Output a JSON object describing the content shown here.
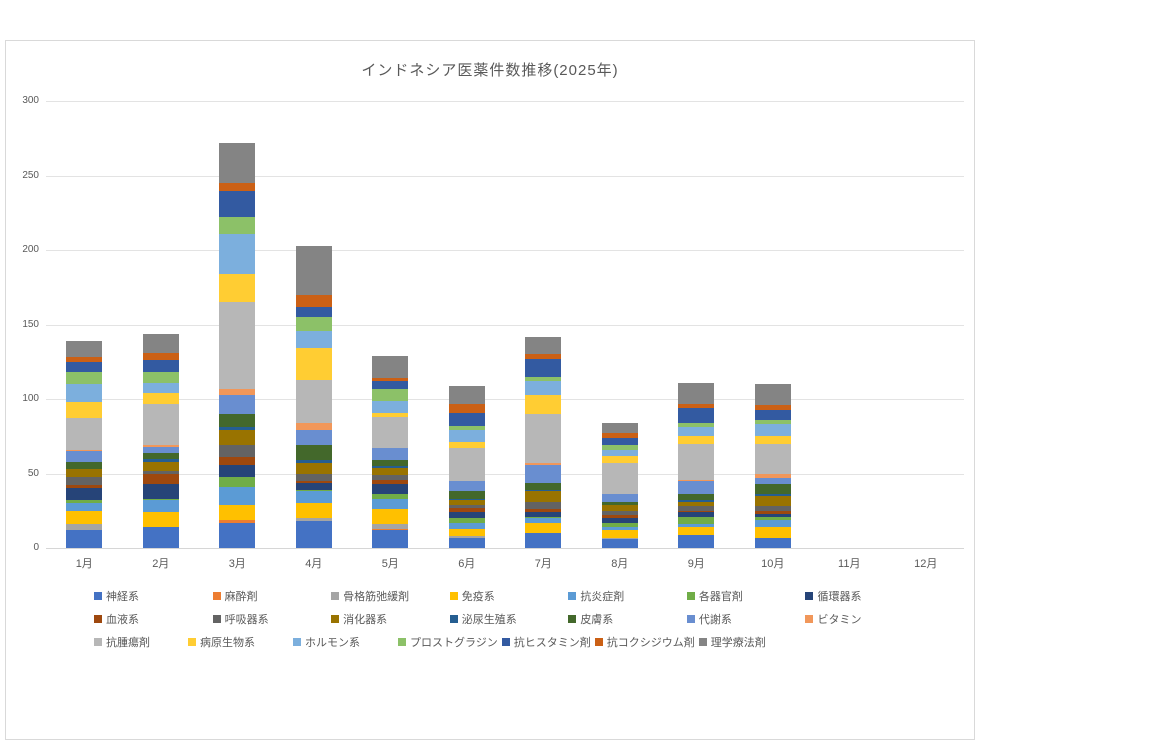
{
  "title": "インドネシア医薬件数推移(2025年)",
  "chart_data": {
    "type": "bar",
    "stacked": true,
    "title": "インドネシア医薬件数推移(2025年)",
    "categories": [
      "1月",
      "2月",
      "3月",
      "4月",
      "5月",
      "6月",
      "7月",
      "8月",
      "9月",
      "10月",
      "11月",
      "12月"
    ],
    "ylim": [
      0,
      300
    ],
    "yticks": [
      0,
      50,
      100,
      150,
      200,
      250,
      300
    ],
    "grid": true,
    "legend_position": "bottom",
    "series": [
      {
        "name": "神経系",
        "color": "#4472C4",
        "values": [
          12,
          14,
          17,
          18,
          12,
          7,
          10,
          6,
          9,
          7,
          0,
          0
        ]
      },
      {
        "name": "麻酔剤",
        "color": "#ED7D31",
        "values": [
          0,
          0,
          2,
          0,
          1,
          0,
          0,
          0,
          0,
          0,
          0,
          0
        ]
      },
      {
        "name": "骨格筋弛緩剤",
        "color": "#A5A5A5",
        "values": [
          4,
          0,
          0,
          2,
          3,
          1,
          0,
          1,
          0,
          0,
          0,
          0
        ]
      },
      {
        "name": "免疫系",
        "color": "#FFC000",
        "values": [
          9,
          10,
          10,
          10,
          10,
          5,
          7,
          5,
          5,
          7,
          0,
          0
        ]
      },
      {
        "name": "抗炎症剤",
        "color": "#5B9BD5",
        "values": [
          5,
          8,
          12,
          8,
          7,
          4,
          3,
          2,
          2,
          5,
          0,
          0
        ]
      },
      {
        "name": "各器官剤",
        "color": "#70AD47",
        "values": [
          2,
          1,
          7,
          1,
          3,
          3,
          1,
          3,
          5,
          2,
          0,
          0
        ]
      },
      {
        "name": "循環器系",
        "color": "#264478",
        "values": [
          8,
          10,
          8,
          5,
          7,
          4,
          3,
          3,
          3,
          2,
          0,
          0
        ]
      },
      {
        "name": "血液系",
        "color": "#9E480E",
        "values": [
          2,
          7,
          5,
          1,
          3,
          3,
          2,
          2,
          1,
          2,
          0,
          0
        ]
      },
      {
        "name": "呼吸器系",
        "color": "#636363",
        "values": [
          6,
          2,
          8,
          5,
          3,
          2,
          5,
          3,
          3,
          3,
          0,
          0
        ]
      },
      {
        "name": "消化器系",
        "color": "#997300",
        "values": [
          5,
          6,
          10,
          7,
          5,
          3,
          7,
          4,
          3,
          7,
          0,
          0
        ]
      },
      {
        "name": "泌尿生殖系",
        "color": "#255E91",
        "values": [
          0,
          2,
          2,
          2,
          1,
          1,
          1,
          0,
          1,
          1,
          0,
          0
        ]
      },
      {
        "name": "皮膚系",
        "color": "#43682B",
        "values": [
          5,
          4,
          9,
          10,
          4,
          5,
          5,
          2,
          4,
          7,
          0,
          0
        ]
      },
      {
        "name": "代謝系",
        "color": "#698ED0",
        "values": [
          7,
          4,
          13,
          10,
          8,
          7,
          12,
          5,
          9,
          4,
          0,
          0
        ]
      },
      {
        "name": "ビタミン",
        "color": "#F1975A",
        "values": [
          1,
          1,
          4,
          5,
          0,
          0,
          1,
          0,
          1,
          3,
          0,
          0
        ]
      },
      {
        "name": "抗腫瘍剤",
        "color": "#B7B7B7",
        "values": [
          21,
          28,
          58,
          29,
          21,
          22,
          33,
          21,
          24,
          20,
          0,
          0
        ]
      },
      {
        "name": "病原生物系",
        "color": "#FFCD33",
        "values": [
          11,
          7,
          19,
          21,
          3,
          4,
          13,
          5,
          5,
          5,
          0,
          0
        ]
      },
      {
        "name": "ホルモン系",
        "color": "#7CAFDD",
        "values": [
          12,
          7,
          27,
          12,
          8,
          8,
          9,
          4,
          6,
          8,
          0,
          0
        ]
      },
      {
        "name": "プロストグラジン",
        "color": "#8CC168",
        "values": [
          8,
          7,
          11,
          9,
          8,
          3,
          3,
          3,
          3,
          3,
          0,
          0
        ]
      },
      {
        "name": "抗ヒスタミン剤",
        "color": "#335AA1",
        "values": [
          7,
          8,
          18,
          7,
          5,
          9,
          12,
          5,
          10,
          7,
          0,
          0
        ]
      },
      {
        "name": "抗コクシジウム剤",
        "color": "#CB6015",
        "values": [
          3,
          5,
          5,
          8,
          2,
          6,
          3,
          3,
          3,
          3,
          0,
          0
        ]
      },
      {
        "name": "理学療法剤",
        "color": "#848484",
        "values": [
          11,
          13,
          27,
          33,
          15,
          12,
          12,
          7,
          14,
          14,
          0,
          0
        ]
      }
    ],
    "monthly_totals": [
      139,
      144,
      272,
      203,
      129,
      109,
      142,
      84,
      111,
      110,
      0,
      0
    ]
  }
}
